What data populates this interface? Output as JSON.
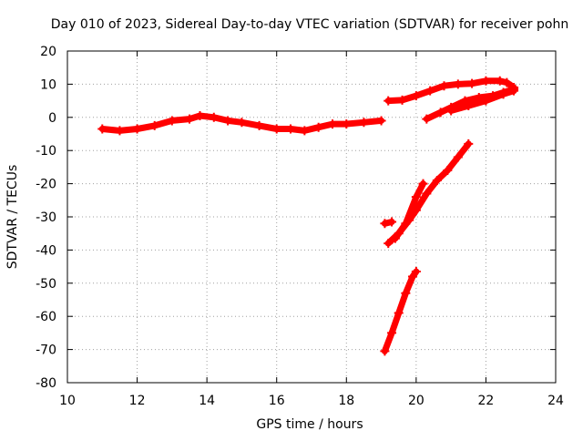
{
  "chart_data": {
    "type": "scatter",
    "title": "Day 010 of 2023, Sidereal Day-to-day VTEC variation (SDTVAR) for receiver pohn",
    "xlabel": "GPS time / hours",
    "ylabel": "SDTVAR / TECUs",
    "xlim": [
      10,
      24
    ],
    "ylim": [
      -80,
      20
    ],
    "xticks": [
      10,
      12,
      14,
      16,
      18,
      20,
      22,
      24
    ],
    "yticks": [
      -80,
      -70,
      -60,
      -50,
      -40,
      -30,
      -20,
      -10,
      0,
      10,
      20
    ],
    "grid": true,
    "legend": "none",
    "color": "#ff0000",
    "series": [
      {
        "points": [
          [
            11.0,
            -3.5
          ],
          [
            11.5,
            -4.0
          ],
          [
            12.0,
            -3.5
          ],
          [
            12.5,
            -2.5
          ],
          [
            13.0,
            -1.0
          ],
          [
            13.5,
            -0.5
          ],
          [
            13.8,
            0.5
          ],
          [
            14.2,
            0.0
          ],
          [
            14.6,
            -1.0
          ],
          [
            15.0,
            -1.5
          ],
          [
            15.5,
            -2.5
          ],
          [
            16.0,
            -3.5
          ],
          [
            16.4,
            -3.5
          ],
          [
            16.8,
            -4.0
          ],
          [
            17.2,
            -3.0
          ],
          [
            17.6,
            -2.0
          ],
          [
            18.0,
            -2.0
          ],
          [
            18.5,
            -1.5
          ],
          [
            19.0,
            -1.0
          ]
        ]
      },
      {
        "points": [
          [
            19.2,
            5.0
          ],
          [
            19.6,
            5.2
          ],
          [
            20.0,
            6.5
          ],
          [
            20.4,
            8.0
          ],
          [
            20.8,
            9.5
          ],
          [
            21.2,
            10.0
          ],
          [
            21.6,
            10.2
          ],
          [
            22.0,
            11.0
          ],
          [
            22.4,
            11.0
          ],
          [
            22.6,
            10.5
          ],
          [
            22.8,
            9.0
          ]
        ]
      },
      {
        "points": [
          [
            20.3,
            -0.5
          ],
          [
            20.7,
            1.5
          ],
          [
            21.0,
            3.0
          ],
          [
            21.4,
            5.0
          ],
          [
            21.8,
            6.0
          ],
          [
            22.2,
            6.5
          ],
          [
            22.5,
            7.5
          ],
          [
            22.8,
            8.5
          ]
        ]
      },
      {
        "points": [
          [
            21.0,
            2.0
          ],
          [
            21.5,
            3.5
          ],
          [
            22.0,
            5.0
          ],
          [
            22.5,
            7.0
          ],
          [
            22.8,
            8.0
          ]
        ]
      },
      {
        "points": [
          [
            19.1,
            -32.0
          ],
          [
            19.3,
            -31.5
          ]
        ]
      },
      {
        "points": [
          [
            19.2,
            -38.0
          ],
          [
            19.5,
            -35.0
          ],
          [
            19.8,
            -31.0
          ],
          [
            20.0,
            -28.0
          ],
          [
            20.3,
            -23.0
          ],
          [
            20.6,
            -19.0
          ],
          [
            20.9,
            -16.0
          ],
          [
            21.2,
            -12.0
          ],
          [
            21.5,
            -8.0
          ]
        ]
      },
      {
        "points": [
          [
            19.4,
            -36.5
          ],
          [
            19.7,
            -32.0
          ],
          [
            20.0,
            -24.0
          ],
          [
            20.2,
            -20.0
          ]
        ]
      },
      {
        "points": [
          [
            19.1,
            -70.5
          ],
          [
            19.3,
            -65.0
          ],
          [
            19.5,
            -59.0
          ],
          [
            19.7,
            -53.0
          ],
          [
            19.9,
            -48.0
          ],
          [
            20.0,
            -46.5
          ]
        ]
      }
    ]
  }
}
